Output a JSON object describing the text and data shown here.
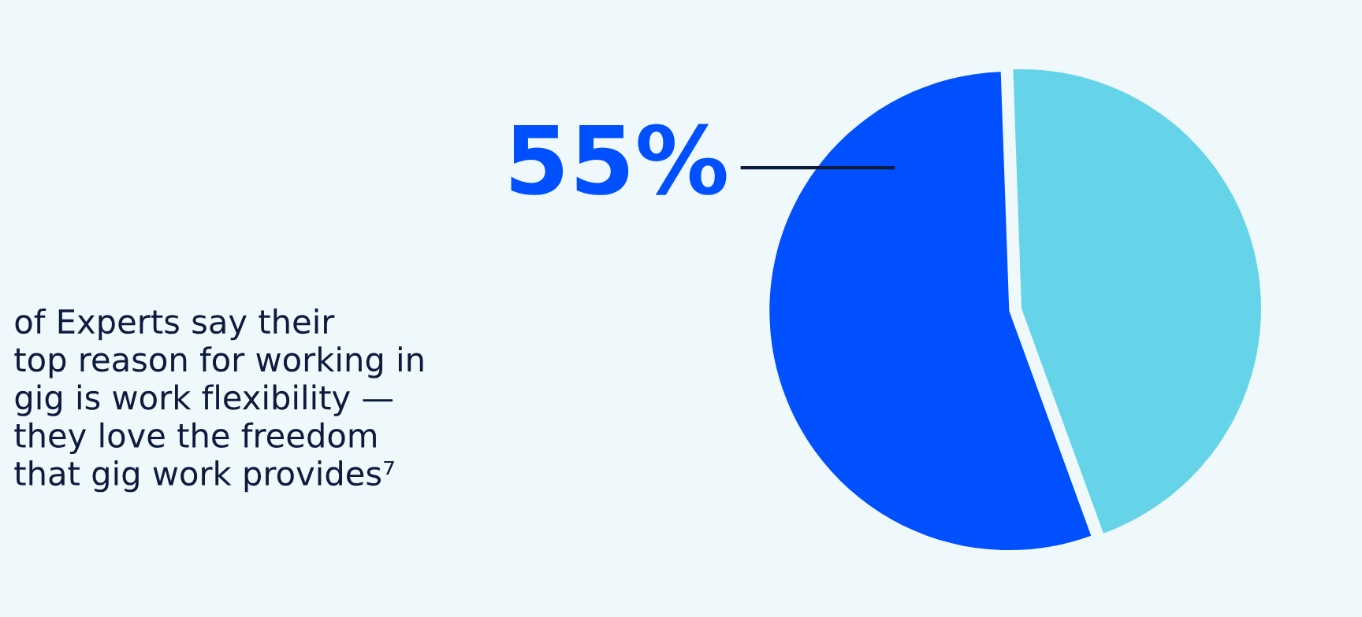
{
  "chart_data": {
    "type": "pie",
    "categories": [
      null,
      null
    ],
    "values": [
      55,
      45
    ],
    "colors": [
      "#0050ff",
      "#66d4e8"
    ],
    "value_labels": [
      "55%",
      null
    ],
    "annotations": [
      "of Experts say their\ntop reason for working in\ngig is work flexibility —\nthey love the freedom\nthat gig work provides⁷"
    ]
  }
}
